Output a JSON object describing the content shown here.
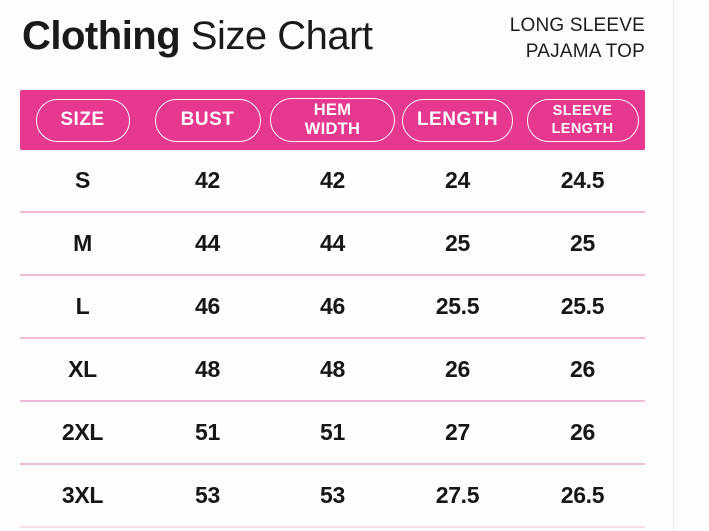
{
  "header": {
    "title_bold": "Clothing",
    "title_regular": " Size Chart",
    "subtitle_line1": "LONG SLEEVE",
    "subtitle_line2": "PAJAMA TOP"
  },
  "table": {
    "columns": [
      {
        "label": "SIZE"
      },
      {
        "label": "BUST"
      },
      {
        "label": "HEM WIDTH"
      },
      {
        "label": "LENGTH"
      },
      {
        "label": "SLEEVE\nLENGTH"
      }
    ],
    "rows": [
      {
        "size": "S",
        "values": [
          "42",
          "42",
          "24",
          "24.5"
        ]
      },
      {
        "size": "M",
        "values": [
          "44",
          "44",
          "25",
          "25"
        ]
      },
      {
        "size": "L",
        "values": [
          "46",
          "46",
          "25.5",
          "25.5"
        ]
      },
      {
        "size": "XL",
        "values": [
          "48",
          "48",
          "26",
          "26"
        ]
      },
      {
        "size": "2XL",
        "values": [
          "51",
          "51",
          "27",
          "26"
        ]
      },
      {
        "size": "3XL",
        "values": [
          "53",
          "53",
          "27.5",
          "26.5"
        ]
      }
    ]
  },
  "colors": {
    "accent_pink": "#e6388e",
    "divider_pink": "#f2b9d6",
    "text_dark": "#1a1a1a"
  }
}
